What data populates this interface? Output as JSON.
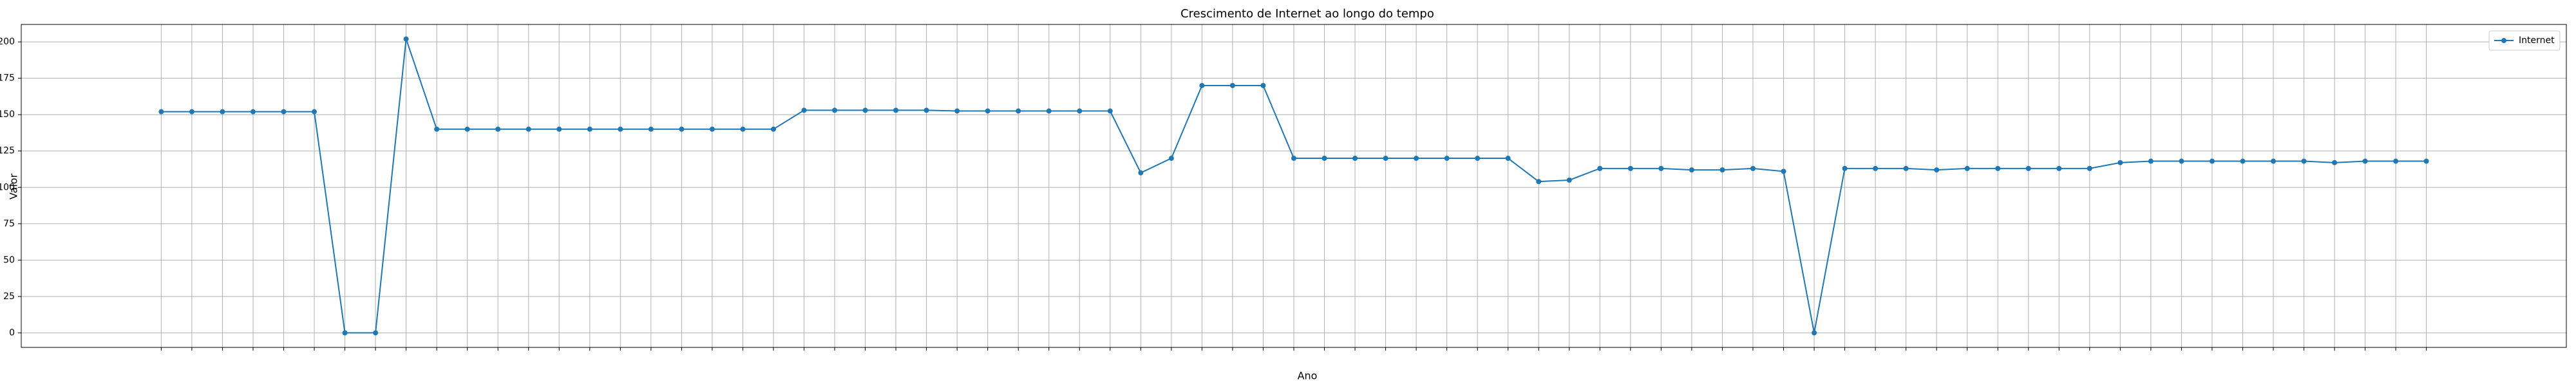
{
  "chart_data": {
    "type": "line",
    "title": "Crescimento de Internet ao longo do tempo",
    "x_label": "Ano",
    "y_label": "Valor",
    "categories": [
      null,
      null,
      null,
      null,
      null,
      null,
      null,
      null,
      null,
      null,
      null,
      null,
      null,
      null,
      null,
      null,
      null,
      null,
      null,
      null,
      null,
      null,
      null,
      null,
      null,
      null,
      null,
      null,
      null,
      null,
      null,
      null,
      null,
      null,
      null,
      null,
      null,
      null,
      null,
      null,
      null,
      null,
      null,
      null,
      null,
      null,
      null,
      null,
      null,
      null,
      null,
      null,
      null,
      null,
      null,
      null,
      null,
      null,
      null,
      null,
      null,
      null,
      null,
      null,
      null,
      null,
      null,
      null,
      null,
      null,
      null,
      null,
      null,
      null,
      null
    ],
    "series": [
      {
        "name": "Internet",
        "color": "#1f77b4",
        "values": [
          152,
          152,
          152,
          152,
          152,
          152,
          0,
          0,
          202,
          140,
          140,
          140,
          140,
          140,
          140,
          140,
          140,
          140,
          140,
          140,
          140,
          153,
          153,
          153,
          153,
          153,
          152.5,
          152.5,
          152.5,
          152.5,
          152.5,
          152.5,
          110,
          120,
          170,
          170,
          170,
          120,
          120,
          120,
          120,
          120,
          120,
          120,
          120,
          104,
          105,
          113,
          113,
          113,
          112,
          112,
          113,
          111,
          0,
          113,
          113,
          113,
          112,
          113,
          113,
          113,
          113,
          113,
          117,
          118,
          118,
          118,
          118,
          118,
          118,
          117,
          118,
          118,
          118
        ]
      }
    ],
    "ylim": [
      -10,
      212
    ],
    "yticks": [
      0,
      25,
      50,
      75,
      100,
      125,
      150,
      175,
      200
    ],
    "grid": true,
    "legend": "upper right"
  }
}
